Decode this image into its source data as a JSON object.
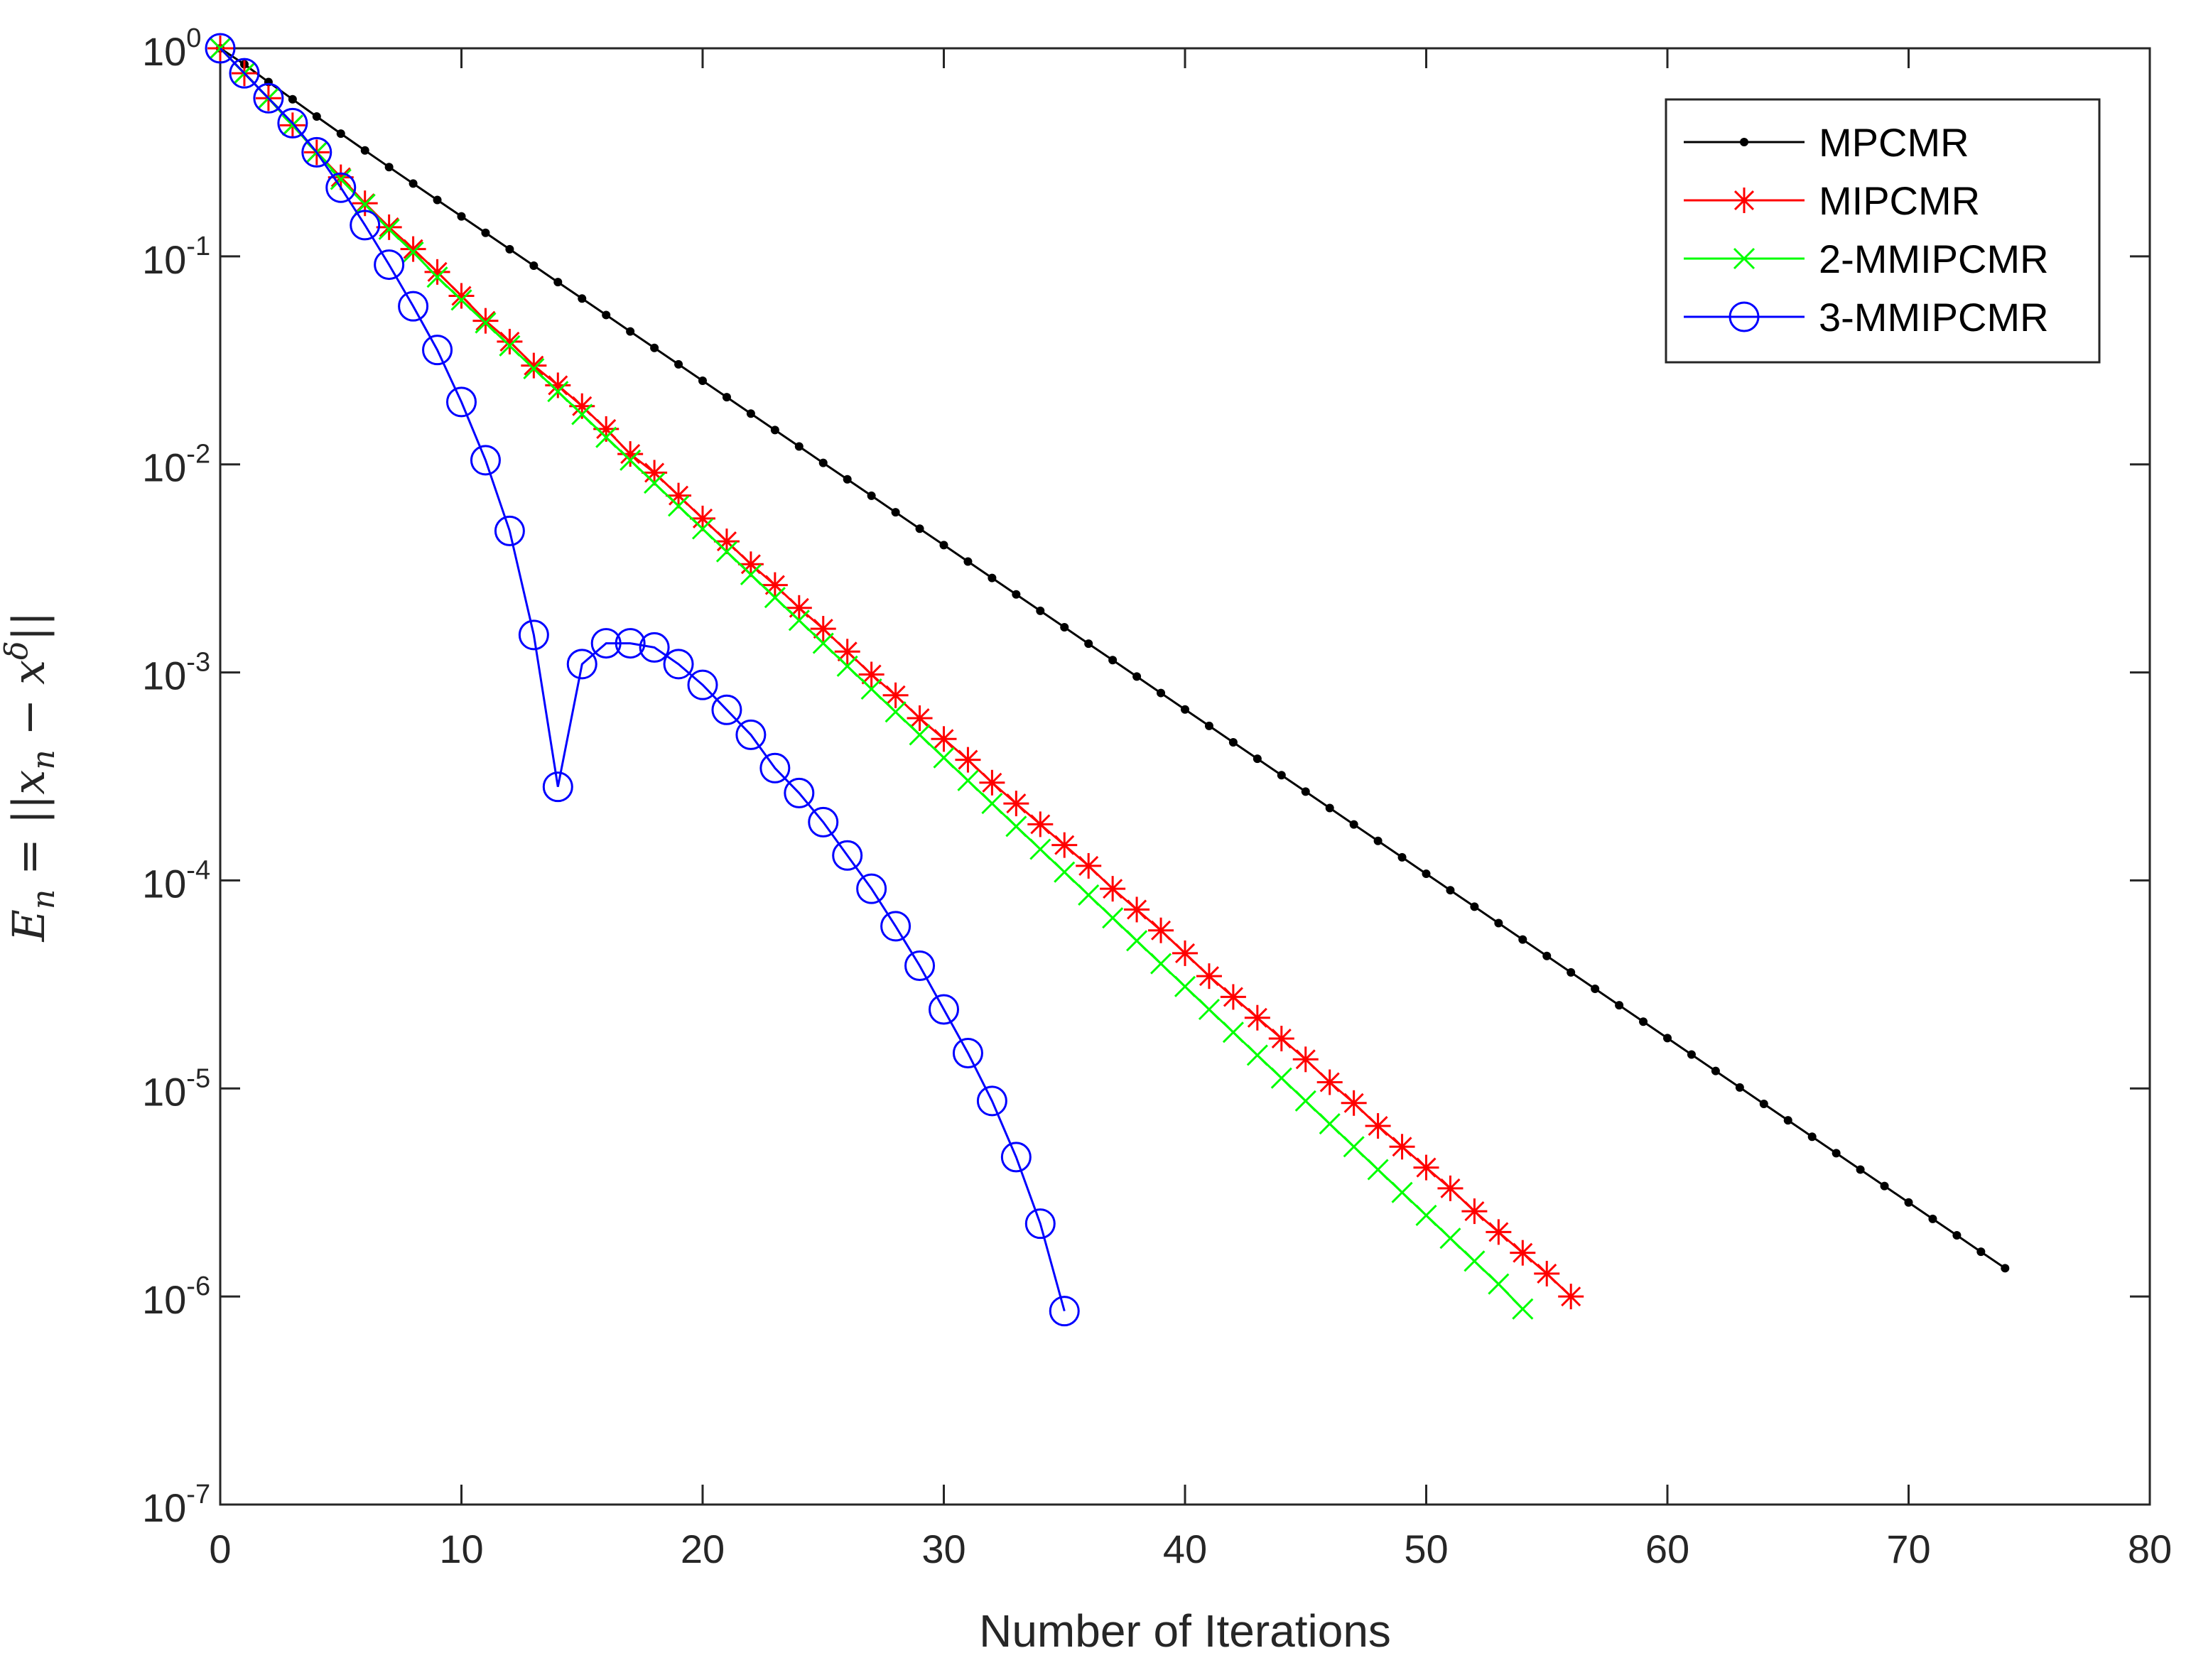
{
  "chart_data": {
    "type": "line",
    "yscale": "log",
    "xlabel": "Number of Iterations",
    "ylabel": "E_n = ||x_n − x^δ||",
    "ylabel_parts": {
      "lhs": "E",
      "lhs_sub": "n",
      "eq": " = ||x",
      "x_sub": "n",
      "minus": " − x",
      "x_sup": "δ",
      "close": "||"
    },
    "xlim": [
      0,
      80
    ],
    "ylim_exp": [
      -7,
      0
    ],
    "xticks": [
      0,
      10,
      20,
      30,
      40,
      50,
      60,
      70,
      80
    ],
    "xtick_labels": [
      "0",
      "10",
      "20",
      "30",
      "40",
      "50",
      "60",
      "70",
      "80"
    ],
    "ytick_exps": [
      0,
      -1,
      -2,
      -3,
      -4,
      -5,
      -6,
      -7
    ],
    "ytick_base": "10",
    "ytick_exp_labels": [
      "0",
      "-1",
      "-2",
      "-3",
      "-4",
      "-5",
      "-6",
      "-7"
    ],
    "legend_position": "top-right",
    "series": [
      {
        "name": "MPCMR",
        "color": "#000000",
        "marker": "dot",
        "x_start": 0,
        "log10_values": [
          0.0,
          -0.077,
          -0.162,
          -0.245,
          -0.328,
          -0.41,
          -0.491,
          -0.571,
          -0.65,
          -0.729,
          -0.808,
          -0.887,
          -0.966,
          -1.045,
          -1.124,
          -1.203,
          -1.282,
          -1.361,
          -1.44,
          -1.519,
          -1.598,
          -1.677,
          -1.756,
          -1.835,
          -1.914,
          -1.993,
          -2.072,
          -2.151,
          -2.23,
          -2.309,
          -2.388,
          -2.467,
          -2.546,
          -2.625,
          -2.704,
          -2.783,
          -2.862,
          -2.941,
          -3.02,
          -3.099,
          -3.178,
          -3.257,
          -3.336,
          -3.415,
          -3.494,
          -3.573,
          -3.652,
          -3.731,
          -3.81,
          -3.889,
          -3.968,
          -4.047,
          -4.126,
          -4.205,
          -4.284,
          -4.363,
          -4.442,
          -4.521,
          -4.6,
          -4.679,
          -4.758,
          -4.837,
          -4.916,
          -4.995,
          -5.074,
          -5.153,
          -5.232,
          -5.311,
          -5.39,
          -5.469,
          -5.548,
          -5.627,
          -5.706,
          -5.785,
          -5.864
        ]
      },
      {
        "name": "MIPCMR",
        "color": "#ff0000",
        "marker": "asterisk",
        "x_start": 0,
        "log10_values": [
          0.0,
          -0.12,
          -0.24,
          -0.37,
          -0.5,
          -0.62,
          -0.745,
          -0.86,
          -0.965,
          -1.075,
          -1.19,
          -1.31,
          -1.41,
          -1.525,
          -1.62,
          -1.72,
          -1.83,
          -1.95,
          -2.04,
          -2.15,
          -2.26,
          -2.37,
          -2.48,
          -2.58,
          -2.69,
          -2.79,
          -2.9,
          -3.01,
          -3.11,
          -3.22,
          -3.32,
          -3.42,
          -3.53,
          -3.63,
          -3.73,
          -3.83,
          -3.93,
          -4.04,
          -4.14,
          -4.24,
          -4.35,
          -4.46,
          -4.56,
          -4.66,
          -4.76,
          -4.86,
          -4.97,
          -5.07,
          -5.18,
          -5.28,
          -5.38,
          -5.48,
          -5.59,
          -5.69,
          -5.79,
          -5.89,
          -6.0
        ]
      },
      {
        "name": "2-MMIPCMR",
        "color": "#00ff00",
        "marker": "x",
        "x_start": 0,
        "log10_values": [
          0.0,
          -0.12,
          -0.24,
          -0.37,
          -0.5,
          -0.63,
          -0.75,
          -0.87,
          -0.98,
          -1.1,
          -1.21,
          -1.32,
          -1.43,
          -1.54,
          -1.65,
          -1.76,
          -1.87,
          -1.98,
          -2.09,
          -2.2,
          -2.31,
          -2.42,
          -2.53,
          -2.64,
          -2.75,
          -2.86,
          -2.97,
          -3.08,
          -3.19,
          -3.3,
          -3.41,
          -3.52,
          -3.63,
          -3.74,
          -3.85,
          -3.96,
          -4.07,
          -4.18,
          -4.29,
          -4.4,
          -4.51,
          -4.62,
          -4.73,
          -4.84,
          -4.95,
          -5.06,
          -5.17,
          -5.28,
          -5.39,
          -5.5,
          -5.61,
          -5.72,
          -5.83,
          -5.94,
          -6.06
        ]
      },
      {
        "name": "3-MMIPCMR",
        "color": "#0000ff",
        "marker": "circle",
        "x_start": 0,
        "log10_values": [
          0.0,
          -0.12,
          -0.24,
          -0.36,
          -0.5,
          -0.67,
          -0.85,
          -1.04,
          -1.24,
          -1.45,
          -1.7,
          -1.98,
          -2.32,
          -2.82,
          -3.55,
          -2.96,
          -2.86,
          -2.86,
          -2.88,
          -2.96,
          -3.06,
          -3.18,
          -3.3,
          -3.46,
          -3.58,
          -3.72,
          -3.88,
          -4.04,
          -4.22,
          -4.41,
          -4.62,
          -4.83,
          -5.06,
          -5.33,
          -5.65,
          -6.07
        ]
      }
    ]
  }
}
